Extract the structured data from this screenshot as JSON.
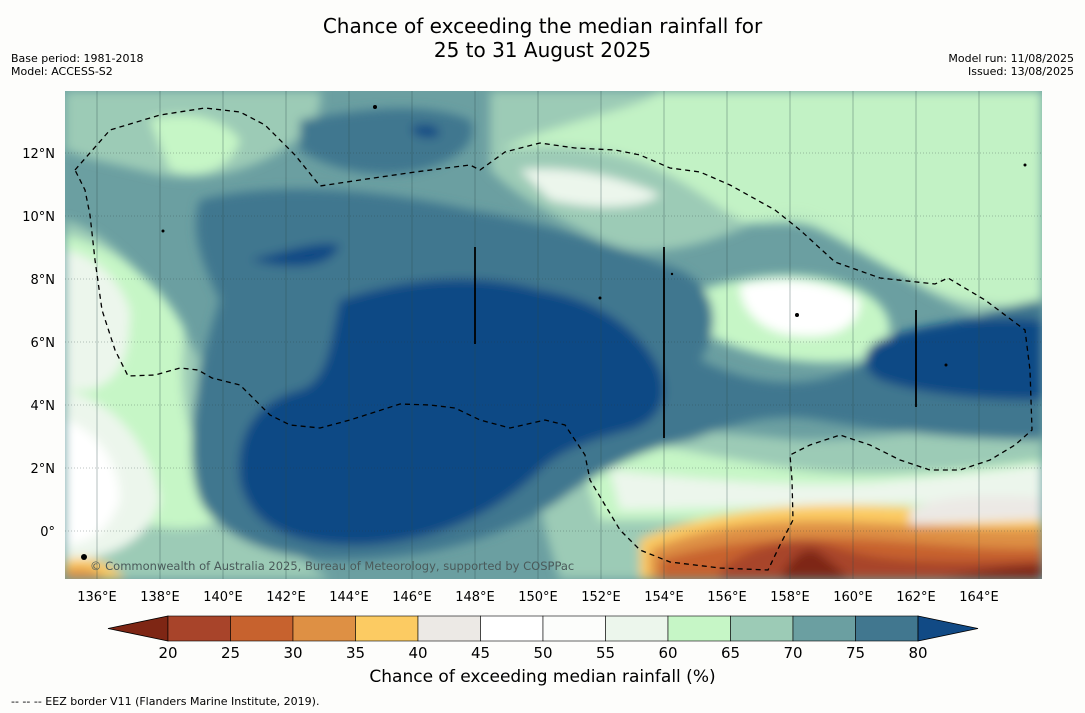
{
  "title_line1": "Chance of exceeding the median rainfall for",
  "title_line2": "25 to 31 August 2025",
  "meta_left": {
    "base_period": "Base period: 1981-2018",
    "model": "Model: ACCESS-S2"
  },
  "meta_right": {
    "model_run": "Model run: 11/08/2025",
    "issued": "Issued: 13/08/2025"
  },
  "copyright": "© Commonwealth of Australia 2025, Bureau of Meteorology, supported by COSPPac",
  "longitude_labels": [
    "136°E",
    "138°E",
    "140°E",
    "142°E",
    "144°E",
    "146°E",
    "148°E",
    "150°E",
    "152°E",
    "154°E",
    "156°E",
    "158°E",
    "160°E",
    "162°E",
    "164°E"
  ],
  "latitude_labels": [
    "12°N",
    "10°N",
    "8°N",
    "6°N",
    "4°N",
    "2°N",
    "0°"
  ],
  "colorbar": {
    "label": "Chance of exceeding median rainfall (%)",
    "ticks": [
      "20",
      "25",
      "30",
      "35",
      "40",
      "45",
      "50",
      "55",
      "60",
      "65",
      "70",
      "75",
      "80"
    ],
    "colors": [
      "#7e2614",
      "#a8442a",
      "#c7622e",
      "#de9044",
      "#fccb62",
      "#ece9e5",
      "#ffffff",
      "#fcfdfb",
      "#ecf6ec",
      "#c6f6c6",
      "#9ccbb6",
      "#6b9fa1",
      "#41778f",
      "#114a85"
    ]
  },
  "footnote": "--  --  -- EEZ border V11 (Flanders Marine Institute, 2019)."
}
